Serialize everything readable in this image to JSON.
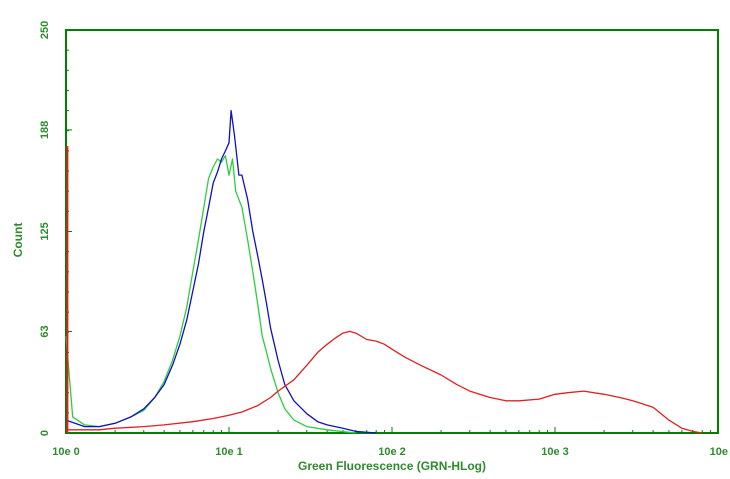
{
  "chart_data": {
    "type": "line",
    "title": "",
    "xlabel": "Green Fluorescence (GRN-HLog)",
    "ylabel": "Count",
    "x_scale": "log",
    "xlim": [
      1,
      10000
    ],
    "ylim": [
      0,
      250
    ],
    "x_ticks": [
      {
        "value": 1,
        "label": "10e 0"
      },
      {
        "value": 10,
        "label": "10e 1"
      },
      {
        "value": 100,
        "label": "10e 2"
      },
      {
        "value": 1000,
        "label": "10e 3"
      },
      {
        "value": 10000,
        "label": "10e"
      }
    ],
    "y_ticks": [
      {
        "value": 0,
        "label": "0"
      },
      {
        "value": 63,
        "label": "63"
      },
      {
        "value": 125,
        "label": "125"
      },
      {
        "value": 188,
        "label": "188"
      },
      {
        "value": 250,
        "label": "250"
      }
    ],
    "grid": false,
    "frame_color": "#008000",
    "label_color": "#2e8b2e",
    "series": [
      {
        "color": "#2ecc40",
        "x": [
          1,
          1.1,
          1.3,
          1.6,
          2,
          2.5,
          3,
          3.5,
          4,
          4.5,
          5,
          5.5,
          6,
          6.5,
          7,
          7.5,
          8,
          8.5,
          9,
          9.5,
          10,
          10.5,
          11,
          12,
          13,
          14,
          15,
          16,
          17,
          18,
          20,
          22,
          25,
          30,
          40,
          60
        ],
        "y": [
          60,
          10,
          5,
          4,
          6,
          10,
          14,
          22,
          32,
          45,
          60,
          78,
          100,
          120,
          140,
          158,
          165,
          170,
          168,
          172,
          160,
          170,
          150,
          140,
          120,
          100,
          80,
          60,
          50,
          40,
          25,
          15,
          8,
          4,
          2,
          0
        ]
      },
      {
        "color": "#1010c0",
        "x": [
          1,
          1.3,
          1.6,
          2,
          2.5,
          3,
          3.5,
          4,
          4.5,
          5,
          5.5,
          6,
          6.5,
          7,
          7.5,
          8,
          8.5,
          9,
          9.5,
          10,
          10.3,
          10.8,
          11.5,
          12,
          13,
          14,
          15,
          16,
          17,
          18,
          20,
          22,
          25,
          30,
          35,
          40,
          50,
          60,
          80
        ],
        "y": [
          8,
          4,
          4,
          6,
          10,
          15,
          22,
          30,
          42,
          55,
          70,
          88,
          105,
          125,
          140,
          155,
          162,
          170,
          175,
          180,
          200,
          185,
          160,
          160,
          145,
          125,
          110,
          95,
          80,
          65,
          45,
          30,
          20,
          12,
          7,
          5,
          3,
          1,
          0
        ]
      },
      {
        "color": "#e02020",
        "x": [
          1,
          1.3,
          1.6,
          2,
          3,
          4,
          6,
          8,
          10,
          12,
          15,
          18,
          20,
          25,
          30,
          35,
          40,
          45,
          50,
          55,
          60,
          70,
          80,
          90,
          100,
          120,
          150,
          200,
          250,
          300,
          400,
          500,
          600,
          800,
          1000,
          1200,
          1500,
          2000,
          2500,
          3000,
          4000,
          5000,
          6000,
          7000,
          8000
        ],
        "y": [
          2,
          2,
          2,
          3,
          4,
          5,
          7,
          9,
          11,
          13,
          17,
          22,
          26,
          33,
          42,
          50,
          55,
          59,
          62,
          63,
          62,
          58,
          57,
          55,
          52,
          47,
          42,
          36,
          30,
          26,
          22,
          20,
          20,
          21,
          24,
          25,
          26,
          24,
          22,
          20,
          16,
          8,
          3,
          1,
          0
        ]
      }
    ],
    "spikes": [
      {
        "color": "#e02020",
        "x": 1.02,
        "y": 178
      }
    ]
  }
}
